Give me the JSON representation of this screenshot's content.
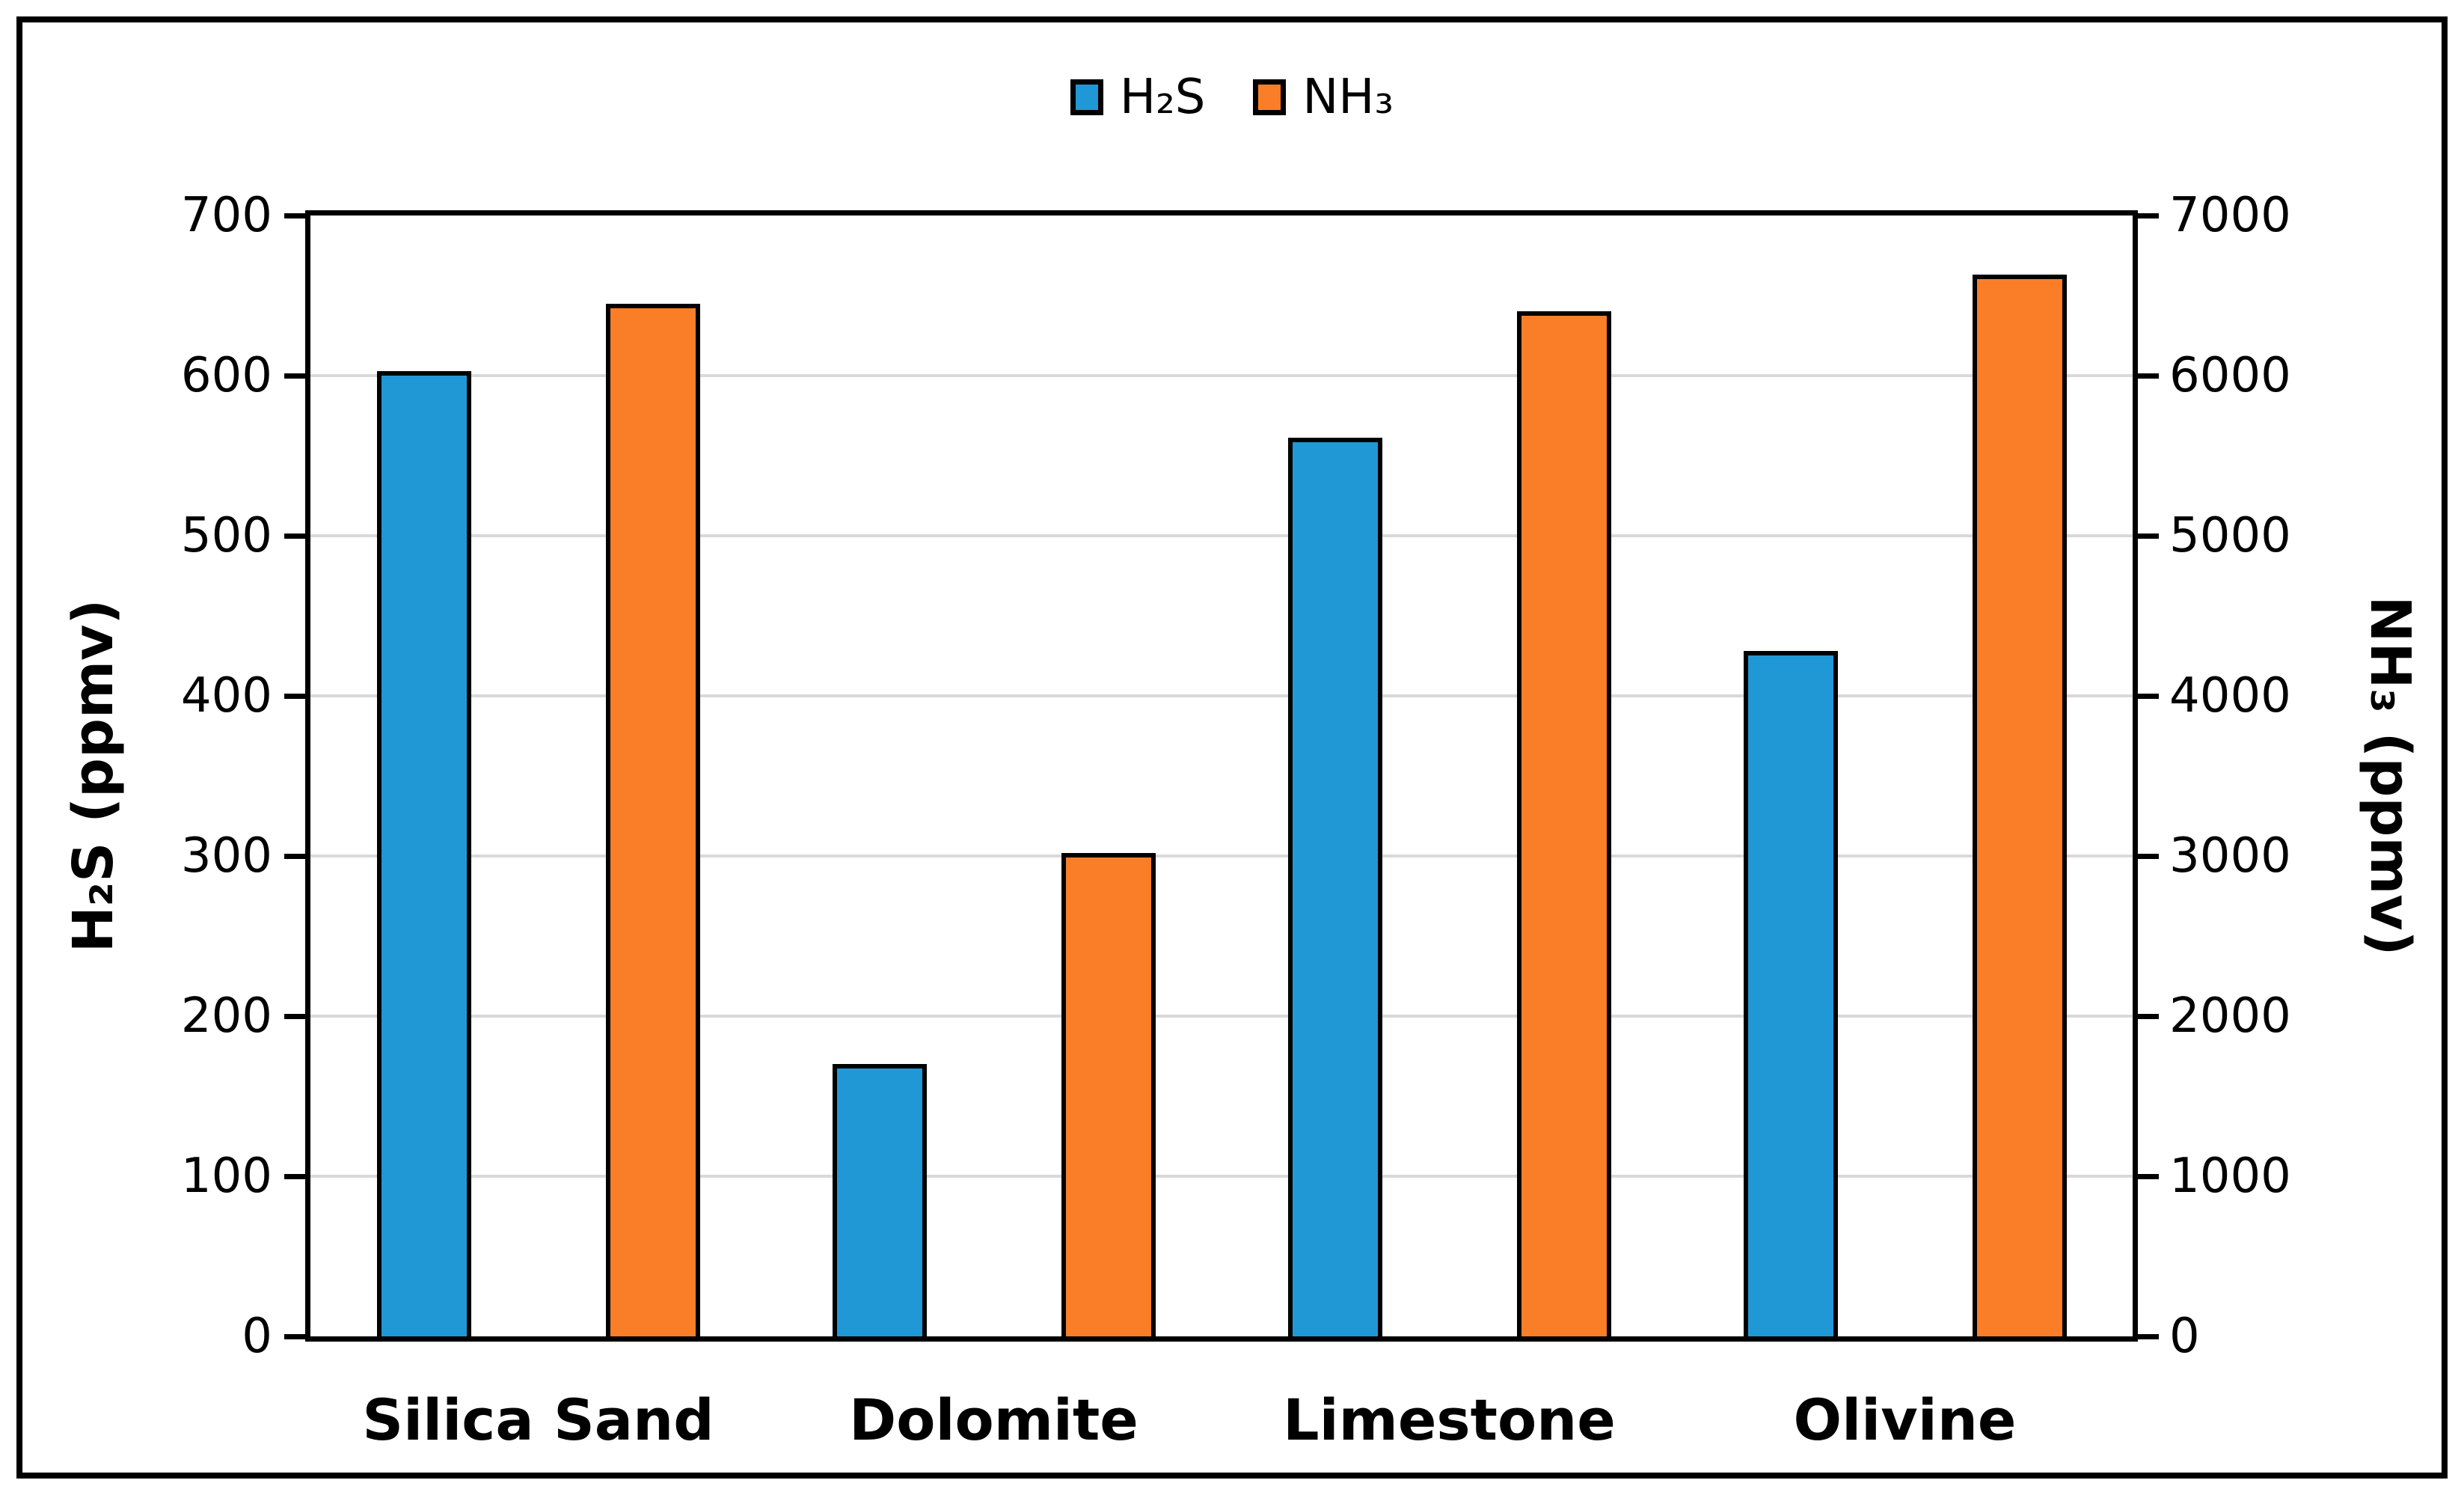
{
  "figure": {
    "background": "#FFFFFF",
    "outer_border_color": "#000000",
    "plot_border_color": "#000000"
  },
  "chart_data": {
    "type": "bar",
    "categories": [
      "Silica Sand",
      "Dolomite",
      "Limestone",
      "Olivine"
    ],
    "series": [
      {
        "name": "H₂S",
        "axis": "left",
        "color": "#2098D5",
        "values": [
          603,
          170,
          561,
          428
        ]
      },
      {
        "name": "NH₃",
        "axis": "right",
        "color": "#F97E27",
        "values": [
          6450,
          3020,
          6400,
          6630
        ]
      }
    ],
    "left_axis": {
      "title": "H₂S (ppmv)",
      "min": 0,
      "max": 700,
      "tick_step": 100,
      "ticks": [
        0,
        100,
        200,
        300,
        400,
        500,
        600,
        700
      ]
    },
    "right_axis": {
      "title": "NH₃ (ppmv)",
      "min": 0,
      "max": 7000,
      "tick_step": 1000,
      "ticks": [
        0,
        1000,
        2000,
        3000,
        4000,
        5000,
        6000,
        7000
      ]
    },
    "grid": {
      "show": true,
      "color": "#D9D9D9"
    },
    "legend_position": "top-center",
    "bar_outline_color": "#000000"
  }
}
